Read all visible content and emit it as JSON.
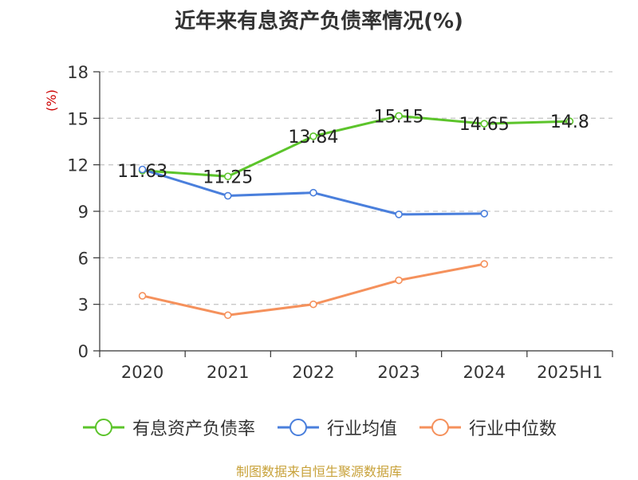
{
  "chart_data": {
    "type": "line",
    "title": "近年来有息资产负债率情况(%)",
    "ylabel": "(%)",
    "xlabel": "",
    "categories": [
      "2020",
      "2021",
      "2022",
      "2023",
      "2024",
      "2025H1"
    ],
    "ylim": [
      0,
      18
    ],
    "yticks": [
      0,
      3,
      6,
      9,
      12,
      15,
      18
    ],
    "grid": true,
    "legend_position": "bottom",
    "series": [
      {
        "name": "有息资产负债率",
        "color": "#5cc42b",
        "values": [
          11.63,
          11.25,
          13.84,
          15.15,
          14.65,
          14.8
        ],
        "labels": [
          "11.63",
          "11.25",
          "13.84",
          "15.15",
          "14.65",
          "14.8"
        ]
      },
      {
        "name": "行业均值",
        "color": "#4a7fdc",
        "values": [
          11.7,
          10.0,
          10.2,
          8.8,
          8.85,
          null
        ],
        "labels": []
      },
      {
        "name": "行业中位数",
        "color": "#f5915c",
        "values": [
          3.55,
          2.3,
          3.0,
          4.55,
          5.6,
          null
        ],
        "labels": []
      }
    ]
  },
  "source": "制图数据来自恒生聚源数据库"
}
